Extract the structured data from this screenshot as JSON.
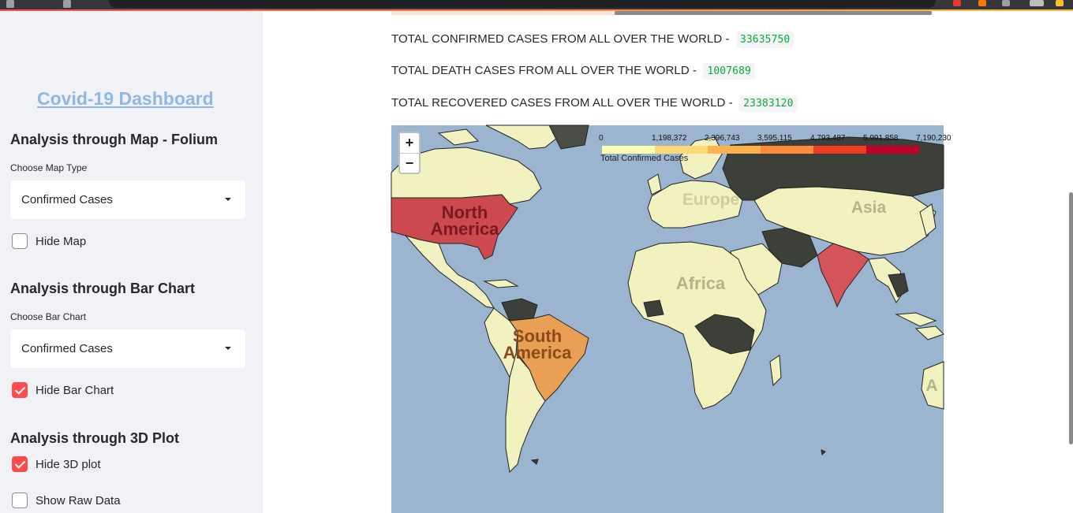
{
  "sidebar": {
    "title": "Covid-19 Dashboard",
    "map_section": {
      "heading": "Analysis through Map - Folium",
      "select_label": "Choose Map Type",
      "select_value": "Confirmed Cases",
      "checkbox_label": "Hide Map",
      "checked": false
    },
    "bar_section": {
      "heading": "Analysis through Bar Chart",
      "select_label": "Choose Bar Chart",
      "select_value": "Confirmed Cases",
      "checkbox_label": "Hide Bar Chart",
      "checked": true
    },
    "plot_section": {
      "heading": "Analysis through 3D Plot",
      "checkbox_label": "Hide 3D plot",
      "checked": true
    },
    "raw_data": {
      "checkbox_label": "Show Raw Data",
      "checked": false
    }
  },
  "stats": {
    "confirmed_label": "TOTAL CONFIRMED CASES FROM ALL OVER THE WORLD -",
    "confirmed_value": "33635750",
    "death_label": "TOTAL DEATH CASES FROM ALL OVER THE WORLD -",
    "death_value": "1007689",
    "recovered_label": "TOTAL RECOVERED CASES FROM ALL OVER THE WORLD -",
    "recovered_value": "23383120"
  },
  "map": {
    "zoom_in": "+",
    "zoom_out": "−",
    "legend": {
      "caption": "Total Confirmed Cases",
      "ticks": [
        "0",
        "1,198,372",
        "2,396,743",
        "3,595,115",
        "4,793,487",
        "5,991,858",
        "7,190,230"
      ],
      "colors": [
        "#ffffb2",
        "#fed976",
        "#feb24c",
        "#fd8d3c",
        "#f03b20",
        "#bd0026"
      ]
    },
    "labels": {
      "north_america": "North America",
      "south_america": "South America",
      "africa": "Africa",
      "asia": "Asia",
      "europe": "Europe",
      "oceania_cut": "A"
    },
    "colors": {
      "ocean": "#9bb4cf",
      "low": "#f2f2c0",
      "usa": "#cc4a4f",
      "brazil": "#e9a055",
      "india": "#d5545a",
      "no_data": "#3d4038"
    }
  }
}
